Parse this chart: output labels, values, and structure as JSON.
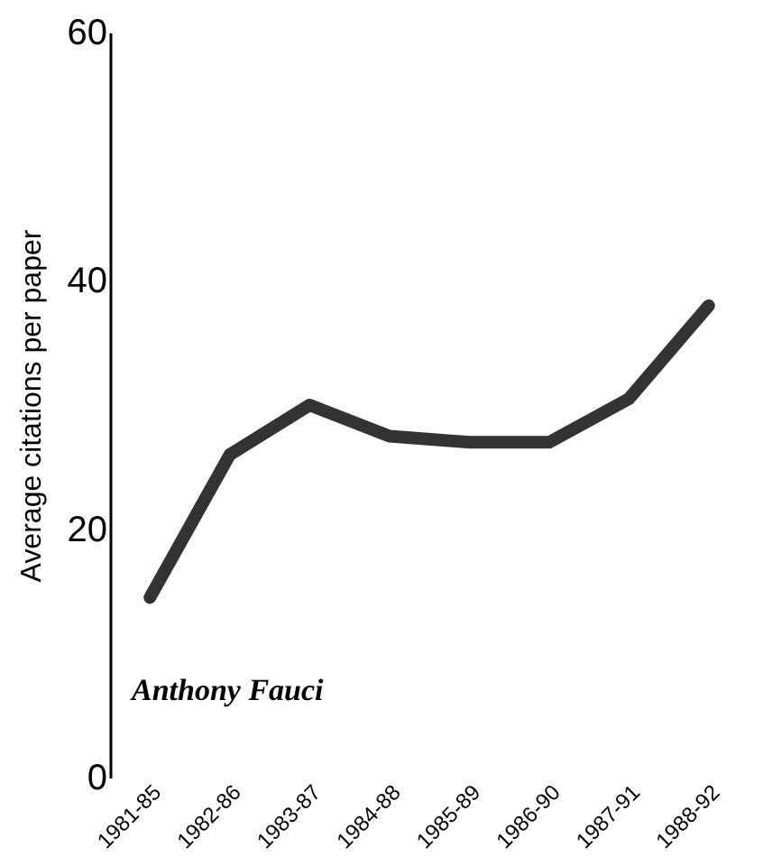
{
  "chart_data": {
    "type": "line",
    "ylabel": "Average citations per paper",
    "categories": [
      "1981-85",
      "1982-86",
      "1983-87",
      "1984-88",
      "1985-89",
      "1986-90",
      "1987-91",
      "1988-92"
    ],
    "series": [
      {
        "color": "#333333",
        "values": [
          14.5,
          26,
          30,
          27.5,
          27,
          27,
          30.5,
          38
        ]
      }
    ],
    "ylim": [
      0,
      60
    ],
    "yticks": [
      0,
      20,
      40,
      60
    ],
    "grid": false,
    "legend": false,
    "line_style": "solid",
    "annotations": [
      "Anthony Fauci"
    ]
  }
}
